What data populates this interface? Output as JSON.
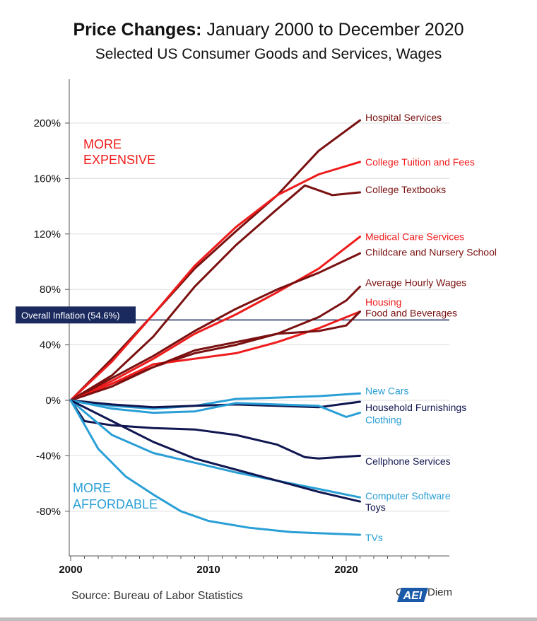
{
  "title": {
    "bold": "Price Changes:",
    "rest": " January 2000 to December 2020",
    "subtitle": "Selected US Consumer Goods and Services, Wages"
  },
  "annotations": {
    "more_expensive_1": "MORE",
    "more_expensive_2": "EXPENSIVE",
    "more_affordable_1": "MORE",
    "more_affordable_2": "AFFORDABLE",
    "overall_inflation": "Overall Inflation (54.6%)"
  },
  "footer": {
    "source": "Source: Bureau of Labor Statistics",
    "brand": "Carpe Diem",
    "logo_text": "AEI"
  },
  "colors": {
    "dark_red": "#7a1010",
    "red": "#ee1c1c",
    "light_blue": "#2a9fd6",
    "navy": "#101650",
    "inflation_line": "#1a2a5e",
    "axis": "#555555",
    "grid": "#dddddd",
    "expensive_text": "#ee1c1c",
    "affordable_text": "#2a9fd6"
  },
  "chart_data": {
    "type": "line",
    "title": "Price Changes: January 2000 to December 2020",
    "subtitle": "Selected US Consumer Goods and Services, Wages",
    "xlabel": "",
    "ylabel": "",
    "xlim": [
      2000,
      2027
    ],
    "ylim": [
      -105,
      215
    ],
    "x_ticks": [
      2000,
      2010,
      2020
    ],
    "y_ticks": [
      -80,
      -40,
      0,
      40,
      80,
      120,
      160,
      200
    ],
    "y_tick_labels": [
      "-80%",
      "-40%",
      "0%",
      "40%",
      "80%",
      "120%",
      "160%",
      "200%"
    ],
    "grid": "horizontal",
    "reference_line": {
      "label": "Overall Inflation (54.6%)",
      "y": 58
    },
    "series": [
      {
        "name": "Hospital Services",
        "color_key": "dark_red",
        "x": [
          2000,
          2003,
          2006,
          2009,
          2012,
          2015,
          2018,
          2021
        ],
        "y": [
          0,
          30,
          62,
          95,
          122,
          148,
          180,
          202
        ]
      },
      {
        "name": "College Tuition and Fees",
        "color_key": "red",
        "x": [
          2000,
          2003,
          2006,
          2009,
          2012,
          2015,
          2018,
          2021
        ],
        "y": [
          0,
          28,
          62,
          97,
          125,
          148,
          163,
          172
        ]
      },
      {
        "name": "College Textbooks",
        "color_key": "dark_red",
        "x": [
          2000,
          2003,
          2006,
          2009,
          2012,
          2015,
          2017,
          2019,
          2021
        ],
        "y": [
          0,
          18,
          46,
          82,
          112,
          138,
          155,
          148,
          150
        ]
      },
      {
        "name": "Medical Care Services",
        "color_key": "red",
        "x": [
          2000,
          2003,
          2006,
          2009,
          2012,
          2015,
          2018,
          2021
        ],
        "y": [
          0,
          14,
          30,
          48,
          62,
          78,
          95,
          118
        ]
      },
      {
        "name": "Childcare and Nursery School",
        "color_key": "dark_red",
        "x": [
          2000,
          2003,
          2006,
          2009,
          2012,
          2015,
          2018,
          2021
        ],
        "y": [
          0,
          16,
          32,
          50,
          66,
          80,
          92,
          106
        ]
      },
      {
        "name": "Average Hourly Wages",
        "color_key": "dark_red",
        "x": [
          2000,
          2003,
          2006,
          2009,
          2012,
          2015,
          2018,
          2020,
          2021
        ],
        "y": [
          0,
          12,
          24,
          34,
          40,
          48,
          60,
          72,
          82
        ]
      },
      {
        "name": "Housing",
        "color_key": "red",
        "x": [
          2000,
          2003,
          2006,
          2009,
          2012,
          2015,
          2018,
          2021
        ],
        "y": [
          0,
          12,
          26,
          30,
          34,
          42,
          52,
          64
        ]
      },
      {
        "name": "Food and Beverages",
        "color_key": "dark_red",
        "x": [
          2000,
          2003,
          2006,
          2009,
          2012,
          2015,
          2018,
          2020,
          2021
        ],
        "y": [
          0,
          10,
          24,
          36,
          42,
          48,
          50,
          54,
          64
        ]
      },
      {
        "name": "New Cars",
        "color_key": "light_blue",
        "x": [
          2000,
          2003,
          2006,
          2009,
          2012,
          2015,
          2018,
          2021
        ],
        "y": [
          0,
          -4,
          -6,
          -4,
          1,
          2,
          3,
          5
        ]
      },
      {
        "name": "Household Furnishings",
        "color_key": "navy",
        "x": [
          2000,
          2003,
          2006,
          2009,
          2012,
          2015,
          2018,
          2021
        ],
        "y": [
          0,
          -3,
          -5,
          -4,
          -3,
          -4,
          -5,
          -1
        ]
      },
      {
        "name": "Clothing",
        "color_key": "light_blue",
        "x": [
          2000,
          2003,
          2006,
          2009,
          2012,
          2015,
          2018,
          2020,
          2021
        ],
        "y": [
          0,
          -6,
          -9,
          -8,
          -2,
          -3,
          -4,
          -12,
          -9
        ]
      },
      {
        "name": "Cellphone Services",
        "color_key": "navy",
        "x": [
          2000,
          2001,
          2003,
          2006,
          2009,
          2012,
          2015,
          2017,
          2018,
          2021
        ],
        "y": [
          0,
          -15,
          -18,
          -20,
          -21,
          -25,
          -32,
          -41,
          -42,
          -40
        ]
      },
      {
        "name": "Computer Software",
        "color_key": "light_blue",
        "x": [
          2000,
          2003,
          2006,
          2009,
          2012,
          2015,
          2018,
          2021
        ],
        "y": [
          0,
          -25,
          -38,
          -45,
          -52,
          -58,
          -64,
          -70
        ]
      },
      {
        "name": "Toys",
        "color_key": "navy",
        "x": [
          2000,
          2003,
          2006,
          2009,
          2012,
          2015,
          2018,
          2021
        ],
        "y": [
          0,
          -15,
          -30,
          -42,
          -50,
          -58,
          -66,
          -73
        ]
      },
      {
        "name": "TVs",
        "color_key": "light_blue",
        "x": [
          2000,
          2002,
          2004,
          2006,
          2008,
          2010,
          2013,
          2016,
          2021
        ],
        "y": [
          0,
          -35,
          -55,
          -68,
          -80,
          -87,
          -92,
          -95,
          -97
        ]
      }
    ],
    "labels": [
      {
        "text": "Hospital Services",
        "color_key": "dark_red",
        "y": 204
      },
      {
        "text": "College Tuition and Fees",
        "color_key": "red",
        "y": 172
      },
      {
        "text": "College Textbooks",
        "color_key": "dark_red",
        "y": 152
      },
      {
        "text": "Medical Care Services",
        "color_key": "red",
        "y": 118
      },
      {
        "text": "Childcare and Nursery School",
        "color_key": "dark_red",
        "y": 107
      },
      {
        "text": "Average Hourly Wages",
        "color_key": "dark_red",
        "y": 85
      },
      {
        "text": "Housing",
        "color_key": "red",
        "y": 71
      },
      {
        "text": "Food and Beverages",
        "color_key": "dark_red",
        "y": 63
      },
      {
        "text": "New Cars",
        "color_key": "light_blue",
        "y": 7
      },
      {
        "text": "Household Furnishings",
        "color_key": "navy",
        "y": -5
      },
      {
        "text": "Clothing",
        "color_key": "light_blue",
        "y": -14
      },
      {
        "text": "Cellphone Services",
        "color_key": "navy",
        "y": -44
      },
      {
        "text": "Computer Software",
        "color_key": "light_blue",
        "y": -69
      },
      {
        "text": "Toys",
        "color_key": "navy",
        "y": -77
      },
      {
        "text": "TVs",
        "color_key": "light_blue",
        "y": -99
      }
    ]
  }
}
